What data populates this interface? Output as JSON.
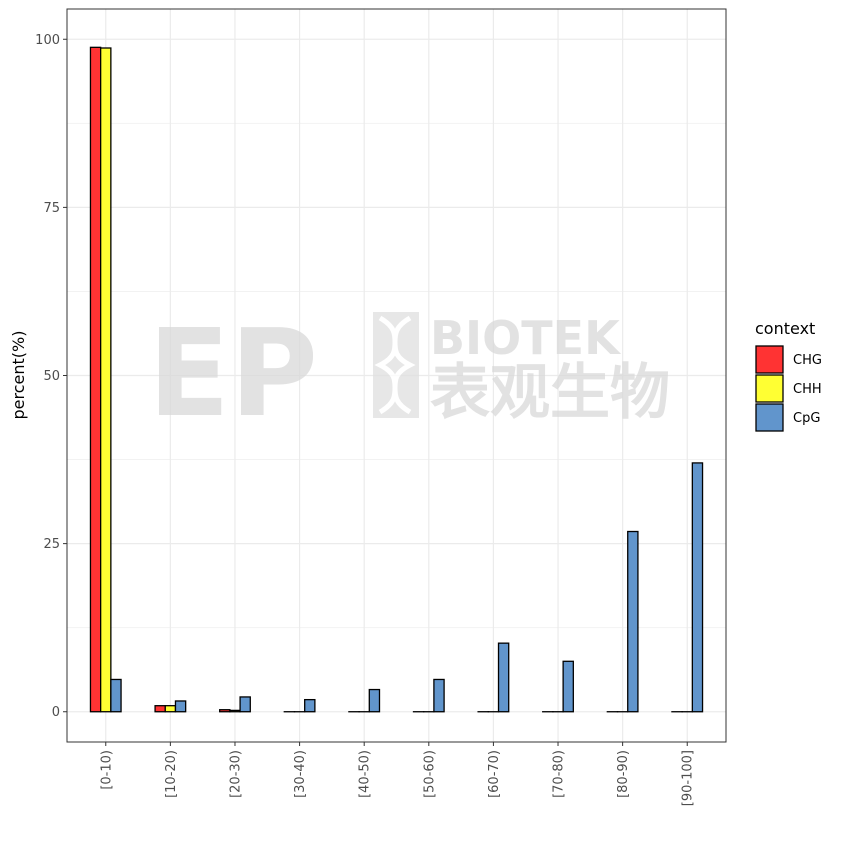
{
  "chart_data": {
    "type": "bar",
    "title": "",
    "xlabel": "",
    "ylabel": "percent(%)",
    "ylim": [
      -4.5,
      104.5
    ],
    "yticks": [
      0,
      25,
      50,
      75,
      100
    ],
    "grid": true,
    "legend_position": "right",
    "legend_title": "context",
    "categories": [
      "[0-10)",
      "[10-20)",
      "[20-30)",
      "[30-40)",
      "[40-50)",
      "[50-60)",
      "[60-70)",
      "[70-80)",
      "[80-90)",
      "[90-100]"
    ],
    "series": [
      {
        "name": "CHG",
        "color": "#ff3333",
        "values": [
          98.8,
          0.9,
          0.3,
          0.0,
          0.0,
          0.0,
          0.0,
          0.0,
          0.0,
          0.0
        ]
      },
      {
        "name": "CHH",
        "color": "#ffff33",
        "values": [
          98.7,
          0.9,
          0.2,
          0.0,
          0.0,
          0.0,
          0.0,
          0.0,
          0.0,
          0.0
        ]
      },
      {
        "name": "CpG",
        "color": "#6195cc",
        "values": [
          4.8,
          1.6,
          2.2,
          1.8,
          3.3,
          4.8,
          10.2,
          7.5,
          26.8,
          37.0
        ]
      }
    ]
  },
  "watermark": {
    "logo_text": "EP",
    "brand_text": "BIOTEK",
    "chinese_text": "表观生物"
  }
}
